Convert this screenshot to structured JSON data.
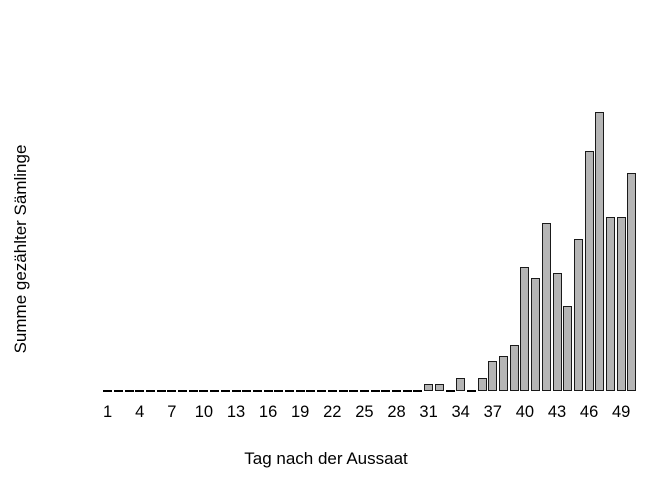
{
  "chart_data": {
    "type": "bar",
    "title": "",
    "xlabel": "Tag nach der Aussaat",
    "ylabel": "Summe gezählter Sämlinge",
    "x_tick_labels": [
      "1",
      "4",
      "7",
      "10",
      "13",
      "16",
      "19",
      "22",
      "25",
      "28",
      "31",
      "34",
      "37",
      "40",
      "43",
      "46",
      "49"
    ],
    "x_tick_days": [
      1,
      4,
      7,
      10,
      13,
      16,
      19,
      22,
      25,
      28,
      31,
      34,
      37,
      40,
      43,
      46,
      49
    ],
    "days": [
      1,
      2,
      3,
      4,
      5,
      6,
      7,
      8,
      9,
      10,
      11,
      12,
      13,
      14,
      15,
      16,
      17,
      18,
      19,
      20,
      21,
      22,
      23,
      24,
      25,
      26,
      27,
      28,
      29,
      30,
      31,
      32,
      33,
      34,
      35,
      36,
      37,
      38,
      39,
      40,
      41,
      42,
      43,
      44,
      45,
      46,
      47,
      48,
      49,
      50
    ],
    "values": [
      0,
      0,
      0,
      0,
      0,
      0,
      0,
      0,
      0,
      0,
      0,
      0,
      0,
      0,
      0,
      0,
      0,
      0,
      0,
      0,
      0,
      0,
      0,
      0,
      0,
      0,
      0,
      0,
      0,
      0,
      1,
      1,
      0,
      2,
      0,
      2,
      5,
      6,
      8,
      22,
      20,
      30,
      21,
      15,
      27,
      43,
      50,
      31,
      31,
      39
    ],
    "value_note": "estimated relative counts; chart shows no y-axis scale",
    "y_axis_shown": false,
    "grid": false,
    "legend": false,
    "x_range_days": [
      1,
      50
    ],
    "colors": {
      "bar_fill": "#b5b5b5",
      "bar_border": "#1a1a1a",
      "zero_dash": "#000000",
      "text": "#000000",
      "background": "#ffffff"
    }
  }
}
